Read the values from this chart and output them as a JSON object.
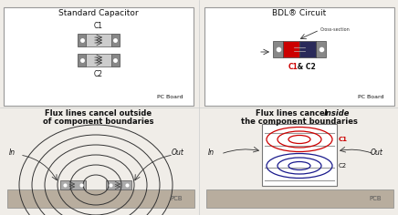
{
  "bg_color": "#f0ede8",
  "panel_bg": "#ffffff",
  "title_left": "Standard Capacitor",
  "title_right": "BDL® Circuit",
  "text_flux_left1": "Flux lines cancel outside",
  "text_flux_left2": "of component boundaries",
  "text_flux_right1": "Flux lines cancel ",
  "text_flux_right1b": "inside",
  "text_flux_right2": "the component boundaries",
  "label_c1": "C1",
  "label_c2": "C2",
  "label_c1c2_red": "C1",
  "label_c1c2_black": " & C2",
  "label_pcboard": "PC Board",
  "label_pcb": "PCB",
  "label_in": "In",
  "label_out": "Out",
  "label_cross": "Cross-section",
  "red_color": "#cc0000",
  "blue_color": "#1a1a8c",
  "pcb_color": "#b8ad9e",
  "text_color": "#111111",
  "gray_pad": "#888888",
  "gray_body": "#cccccc",
  "dark_blue": "#2a2a5a"
}
